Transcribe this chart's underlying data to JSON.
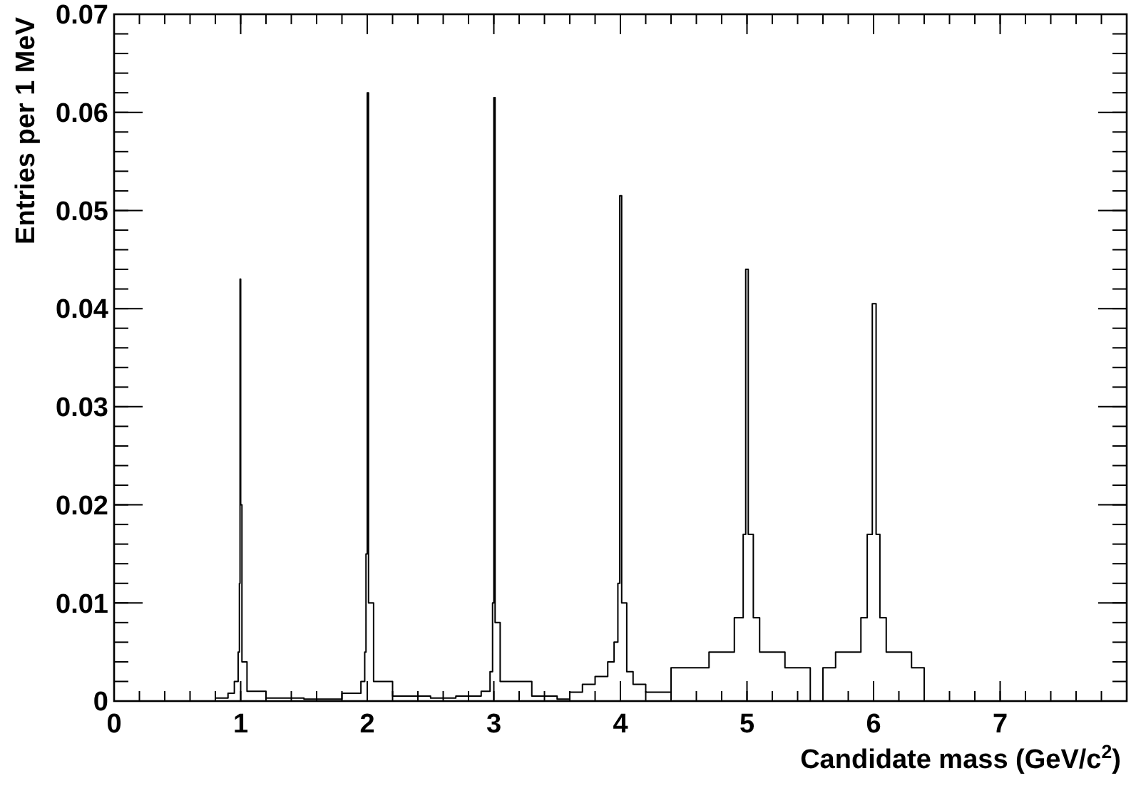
{
  "chart_data": {
    "type": "step",
    "xlabel": "Candidate mass (GeV/c$^{2}$)",
    "ylabel": "Entries per 1 MeV",
    "xlim": [
      0,
      8
    ],
    "xticks": [
      0,
      1,
      2,
      3,
      4,
      5,
      6,
      7
    ],
    "ylim": [
      0,
      0.07
    ],
    "yticks": [
      0,
      0.01,
      0.02,
      0.03,
      0.04,
      0.05,
      0.06,
      0.07
    ],
    "grid": false,
    "series": [
      {
        "color": "#000000",
        "x": [
          0.5,
          0.8,
          0.9,
          0.95,
          0.98,
          0.99,
          0.995,
          1.0,
          1.01,
          1.05,
          1.2,
          1.5,
          1.8,
          1.95,
          1.98,
          1.99,
          2.0,
          2.01,
          2.05,
          2.2,
          2.5,
          2.7,
          2.9,
          2.97,
          2.99,
          3.0,
          3.01,
          3.05,
          3.3,
          3.5,
          3.6,
          3.7,
          3.8,
          3.9,
          3.95,
          3.98,
          3.995,
          4.01,
          4.05,
          4.1,
          4.2,
          4.3,
          4.4,
          4.5,
          4.6,
          4.7,
          4.8,
          4.9,
          4.95,
          4.97,
          4.99,
          5.01,
          5.05,
          5.1,
          5.2,
          5.3,
          5.4,
          5.5,
          5.6,
          5.7,
          5.8,
          5.9,
          5.95,
          5.99,
          6.02,
          6.05,
          6.1,
          6.2,
          6.3,
          6.4
        ],
        "values": [
          0,
          0.0003,
          0.0008,
          0.002,
          0.005,
          0.012,
          0.043,
          0.02,
          0.004,
          0.001,
          0.0003,
          0.0002,
          0.0008,
          0.002,
          0.005,
          0.015,
          0.062,
          0.01,
          0.002,
          0.0005,
          0.0003,
          0.0005,
          0.001,
          0.003,
          0.01,
          0.0615,
          0.008,
          0.002,
          0.0005,
          0.0002,
          0.0009,
          0.0017,
          0.0025,
          0.004,
          0.006,
          0.012,
          0.0515,
          0.01,
          0.003,
          0.0017,
          0.0009,
          0.0009,
          0.0034,
          0.0034,
          0.0034,
          0.005,
          0.005,
          0.0085,
          0.0085,
          0.017,
          0.044,
          0.017,
          0.0085,
          0.005,
          0.005,
          0.0034,
          0.0034,
          0,
          0.0034,
          0.005,
          0.005,
          0.0085,
          0.017,
          0.0405,
          0.017,
          0.0085,
          0.005,
          0.005,
          0.0034,
          0
        ]
      }
    ]
  }
}
